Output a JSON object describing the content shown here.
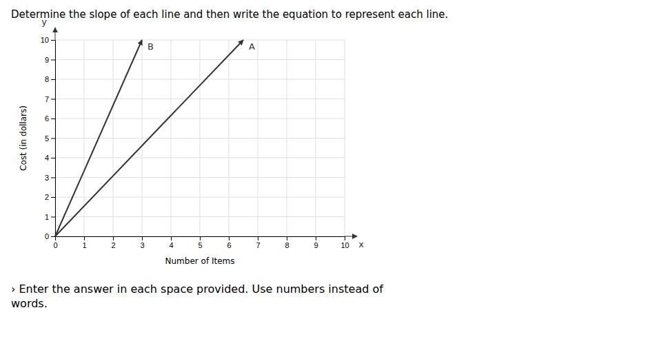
{
  "chart_data": {
    "type": "line",
    "title": "Determine the slope of each line and then write the equation to represent each line.",
    "subtitle": "› Enter the answer in each space provided. Use numbers instead of\nwords.",
    "xlabel": "Number of Items",
    "ylabel": "Cost (in dollars)",
    "xlim": [
      0,
      10
    ],
    "ylim": [
      0,
      10
    ],
    "xticks": [
      0,
      1,
      2,
      3,
      4,
      5,
      6,
      7,
      8,
      9,
      10
    ],
    "yticks": [
      0,
      1,
      2,
      3,
      4,
      5,
      6,
      7,
      8,
      9,
      10
    ],
    "grid": true,
    "marker": "arrow",
    "annotations": [
      "x",
      "y"
    ],
    "series": [
      {
        "name": "A",
        "color": "#333333",
        "x": [
          0,
          6.5
        ],
        "values": [
          0,
          10
        ]
      },
      {
        "name": "B",
        "color": "#333333",
        "x": [
          0,
          3.0
        ],
        "values": [
          0,
          10
        ]
      }
    ]
  }
}
